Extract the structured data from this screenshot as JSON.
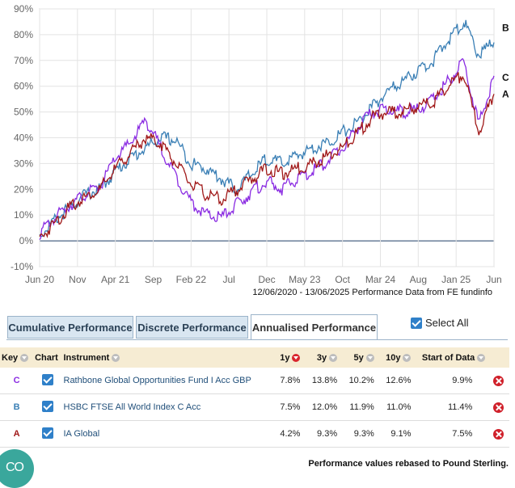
{
  "chart_data": {
    "type": "line",
    "y_ticks": [
      "90%",
      "80%",
      "70%",
      "60%",
      "50%",
      "40%",
      "30%",
      "20%",
      "10%",
      "0%",
      "-10%"
    ],
    "y_range": [
      -10,
      90
    ],
    "x_labels": [
      "Jun 20",
      "Nov",
      "Apr 21",
      "Sep",
      "Feb 22",
      "Jul",
      "Dec",
      "May 23",
      "Oct",
      "Mar 24",
      "Aug",
      "Jan 25",
      "Jun"
    ],
    "caption": "12/06/2020 - 13/06/2025 Performance Data from FE fundinfo",
    "series": [
      {
        "name": "B",
        "color": "#3a7fb5",
        "x": [
          0,
          2,
          4,
          6,
          8,
          10,
          12,
          14,
          16,
          18,
          20,
          22,
          24,
          26,
          28,
          30,
          32,
          34,
          36,
          38,
          40,
          42,
          44,
          46,
          48,
          50,
          52,
          54,
          56,
          58,
          60
        ],
        "values": [
          2,
          8,
          13,
          18,
          20,
          27,
          32,
          36,
          40,
          39,
          30,
          28,
          24,
          20,
          26,
          32,
          30,
          33,
          36,
          38,
          42,
          46,
          52,
          58,
          62,
          66,
          70,
          78,
          85,
          72,
          77
        ]
      },
      {
        "name": "C",
        "color": "#8a2be2",
        "x": [
          0,
          2,
          4,
          6,
          8,
          10,
          12,
          14,
          16,
          18,
          20,
          22,
          24,
          26,
          28,
          30,
          32,
          34,
          36,
          38,
          40,
          42,
          44,
          46,
          48,
          50,
          52,
          54,
          56,
          58,
          60
        ],
        "values": [
          3,
          9,
          14,
          18,
          21,
          32,
          38,
          47,
          36,
          25,
          15,
          10,
          9,
          14,
          19,
          23,
          20,
          24,
          27,
          31,
          36,
          44,
          50,
          51,
          50,
          51,
          55,
          62,
          70,
          45,
          64
        ]
      },
      {
        "name": "A",
        "color": "#a01818",
        "x": [
          0,
          2,
          4,
          6,
          8,
          10,
          12,
          14,
          16,
          18,
          20,
          22,
          24,
          26,
          28,
          30,
          32,
          34,
          36,
          38,
          40,
          42,
          44,
          46,
          48,
          50,
          52,
          54,
          56,
          58,
          60
        ],
        "values": [
          1,
          7,
          13,
          17,
          20,
          28,
          34,
          40,
          38,
          30,
          22,
          18,
          16,
          20,
          24,
          28,
          26,
          28,
          30,
          33,
          36,
          42,
          48,
          50,
          50,
          52,
          54,
          60,
          65,
          42,
          57
        ]
      }
    ]
  },
  "tabs": {
    "cumulative": "Cumulative Performance",
    "discrete": "Discrete Performance",
    "annualised": "Annualised Performance"
  },
  "select_all": "Select All",
  "table": {
    "headers": {
      "key": "Key",
      "chart": "Chart",
      "instrument": "Instrument",
      "y1": "1y",
      "y3": "3y",
      "y5": "5y",
      "y10": "10y",
      "start": "Start of Data"
    },
    "rows": [
      {
        "key": "C",
        "key_color": "#8a2be2",
        "instrument": "Rathbone Global Opportunities Fund I Acc GBP",
        "y1": "7.8%",
        "y3": "13.8%",
        "y5": "10.2%",
        "y10": "12.6%",
        "start": "9.9%"
      },
      {
        "key": "B",
        "key_color": "#3a7fb5",
        "instrument": "HSBC FTSE All World Index C Acc",
        "y1": "7.5%",
        "y3": "12.0%",
        "y5": "11.9%",
        "y10": "11.0%",
        "start": "11.4%"
      },
      {
        "key": "A",
        "key_color": "#a01818",
        "instrument": "IA Global",
        "y1": "4.2%",
        "y3": "9.3%",
        "y5": "9.3%",
        "y10": "9.1%",
        "start": "7.5%"
      }
    ]
  },
  "footnote": "Performance values rebased to Pound Sterling.",
  "fab_label": "CO"
}
